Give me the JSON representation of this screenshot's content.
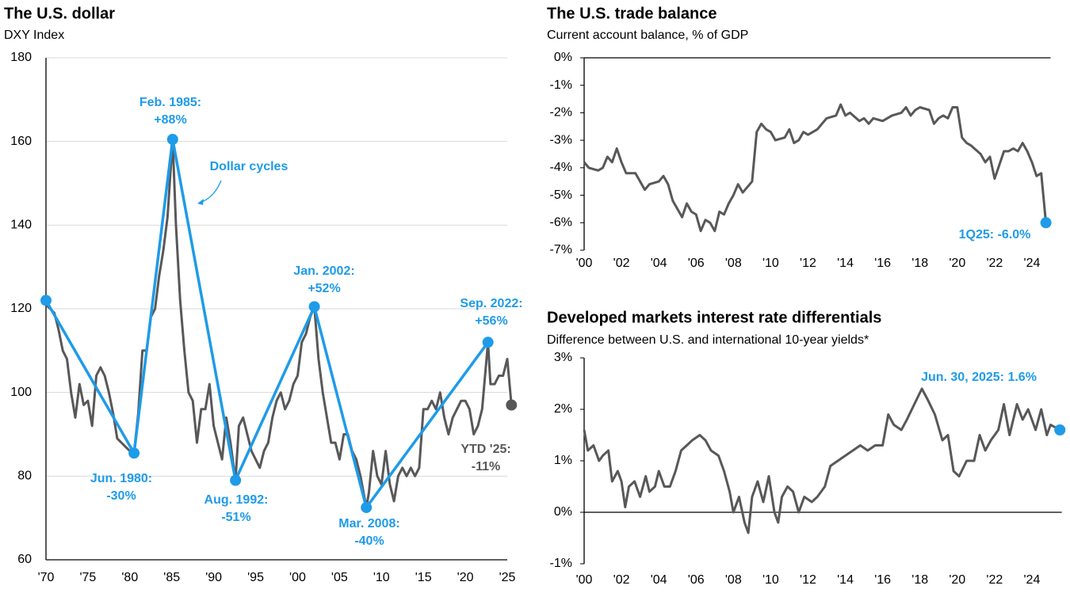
{
  "chart_data": [
    {
      "type": "line",
      "title": "The U.S. dollar",
      "subtitle": "DXY Index",
      "xlim": [
        1970,
        2025
      ],
      "ylim": [
        60,
        180
      ],
      "yticks": [
        60,
        80,
        100,
        120,
        140,
        160,
        180
      ],
      "grid": true,
      "xticks": [
        {
          "value": 1970,
          "label": "'70"
        },
        {
          "value": 1975,
          "label": "'75"
        },
        {
          "value": 1980,
          "label": "'80"
        },
        {
          "value": 1985,
          "label": "'85"
        },
        {
          "value": 1990,
          "label": "'90"
        },
        {
          "value": 1995,
          "label": "'95"
        },
        {
          "value": 2000,
          "label": "'00"
        },
        {
          "value": 2005,
          "label": "'05"
        },
        {
          "value": 2010,
          "label": "'10"
        },
        {
          "value": 2015,
          "label": "'15"
        },
        {
          "value": 2020,
          "label": "'20"
        },
        {
          "value": 2025,
          "label": "'25"
        }
      ],
      "series": [
        {
          "color": "#58585a",
          "marker": "last",
          "x": [
            1970,
            1971,
            1971.5,
            1972,
            1972.5,
            1973,
            1973.5,
            1974,
            1974.5,
            1975,
            1975.5,
            1976,
            1976.5,
            1977,
            1977.5,
            1978,
            1978.5,
            1979,
            1979.5,
            1980,
            1980.5,
            1981,
            1981.5,
            1982,
            1982.5,
            1983,
            1983.5,
            1984,
            1984.5,
            1985.1,
            1985.5,
            1986,
            1986.5,
            1987,
            1987.5,
            1988,
            1988.5,
            1989,
            1989.5,
            1990,
            1990.5,
            1991,
            1991.5,
            1992,
            1992.6,
            1993,
            1993.5,
            1994,
            1994.5,
            1995,
            1995.5,
            1996,
            1996.5,
            1997,
            1997.5,
            1998,
            1998.5,
            1999,
            1999.5,
            2000,
            2000.5,
            2001,
            2001.5,
            2002,
            2002.5,
            2003,
            2003.5,
            2004,
            2004.5,
            2005,
            2005.5,
            2006,
            2006.5,
            2007,
            2007.5,
            2008.2,
            2008.5,
            2009,
            2009.5,
            2010,
            2010.5,
            2011,
            2011.5,
            2012,
            2012.5,
            2013,
            2013.5,
            2014,
            2014.5,
            2015,
            2015.5,
            2016,
            2016.5,
            2017,
            2017.5,
            2018,
            2018.5,
            2019,
            2019.5,
            2020,
            2020.5,
            2021,
            2021.5,
            2022,
            2022.7,
            2023,
            2023.5,
            2024,
            2024.5,
            2025,
            2025.5
          ],
          "values": [
            121,
            119,
            115,
            110,
            108,
            100,
            94,
            102,
            97,
            98,
            92,
            104,
            106,
            104,
            100,
            95,
            89,
            88,
            87,
            86,
            85.5,
            95,
            110,
            110,
            118,
            120,
            128,
            134,
            142,
            160.5,
            140,
            122,
            110,
            100,
            98,
            88,
            96,
            96,
            102,
            92,
            88,
            84,
            94,
            88,
            79,
            92,
            94,
            90,
            86,
            84,
            82,
            86,
            88,
            94,
            98,
            100,
            96,
            98,
            102,
            104,
            112,
            114,
            118,
            120.5,
            108,
            100,
            94,
            88,
            88,
            84,
            90,
            90,
            86,
            84,
            80,
            72.5,
            76,
            86,
            80,
            78,
            86,
            78,
            74,
            80,
            82,
            80,
            82,
            80,
            82,
            96,
            96,
            98,
            96,
            100,
            94,
            90,
            94,
            96,
            98,
            98,
            96,
            90,
            92,
            96,
            112,
            102,
            102,
            104,
            104,
            108,
            97
          ]
        },
        {
          "name": "Dollar cycles",
          "color": "#1e9be9",
          "marker": "all",
          "x": [
            1970,
            1980.5,
            1985.1,
            1992.6,
            2002,
            2008.2,
            2022.7
          ],
          "values": [
            122,
            85.5,
            160.5,
            79,
            120.5,
            72.5,
            112
          ]
        }
      ],
      "annotations": [
        [
          "Jun. 1980:",
          "-30%"
        ],
        [
          "Feb. 1985:",
          "+88%"
        ],
        [
          "Aug. 1992:",
          "-51%"
        ],
        [
          "Jan. 2002:",
          "+52%"
        ],
        [
          "Mar. 2008:",
          "-40%"
        ],
        [
          "Sep. 2022:",
          "+56%"
        ],
        [
          "YTD '25:",
          "-11%"
        ]
      ]
    },
    {
      "type": "line",
      "title": "The U.S. trade balance",
      "subtitle": "Current account balance, % of GDP",
      "xlim": [
        2000,
        2025
      ],
      "ylim": [
        -7,
        0
      ],
      "grid": false,
      "yticks": [
        {
          "value": 0,
          "label": "0%"
        },
        {
          "value": -1,
          "label": "-1%"
        },
        {
          "value": -2,
          "label": "-2%"
        },
        {
          "value": -3,
          "label": "-3%"
        },
        {
          "value": -4,
          "label": "-4%"
        },
        {
          "value": -5,
          "label": "-5%"
        },
        {
          "value": -6,
          "label": "-6%"
        },
        {
          "value": -7,
          "label": "-7%"
        }
      ],
      "xticks": [
        {
          "value": 2000,
          "label": "'00"
        },
        {
          "value": 2002,
          "label": "'02"
        },
        {
          "value": 2004,
          "label": "'04"
        },
        {
          "value": 2006,
          "label": "'06"
        },
        {
          "value": 2008,
          "label": "'08"
        },
        {
          "value": 2010,
          "label": "'10"
        },
        {
          "value": 2012,
          "label": "'12"
        },
        {
          "value": 2014,
          "label": "'14"
        },
        {
          "value": 2016,
          "label": "'16"
        },
        {
          "value": 2018,
          "label": "'18"
        },
        {
          "value": 2020,
          "label": "'20"
        },
        {
          "value": 2022,
          "label": "'22"
        },
        {
          "value": 2024,
          "label": "'24"
        }
      ],
      "series": [
        {
          "color": "#58585a",
          "marker": "last",
          "x": [
            2000,
            2000.25,
            2000.75,
            2001,
            2001.25,
            2001.5,
            2001.75,
            2002,
            2002.25,
            2002.75,
            2003.25,
            2003.5,
            2004,
            2004.25,
            2004.5,
            2004.75,
            2005,
            2005.25,
            2005.5,
            2005.75,
            2006,
            2006.25,
            2006.5,
            2006.75,
            2007,
            2007.25,
            2007.5,
            2007.75,
            2008,
            2008.25,
            2008.5,
            2008.75,
            2009,
            2009.25,
            2009.5,
            2009.75,
            2010,
            2010.25,
            2010.75,
            2011,
            2011.25,
            2011.5,
            2011.75,
            2012,
            2012.5,
            2012.75,
            2013,
            2013.5,
            2013.75,
            2014,
            2014.25,
            2014.75,
            2015,
            2015.25,
            2015.5,
            2016,
            2016.5,
            2017,
            2017.25,
            2017.5,
            2017.75,
            2018,
            2018.5,
            2018.75,
            2019,
            2019.25,
            2019.5,
            2019.75,
            2020,
            2020.25,
            2020.5,
            2020.75,
            2021.25,
            2021.5,
            2021.75,
            2022,
            2022.25,
            2022.5,
            2022.75,
            2023,
            2023.25,
            2023.5,
            2023.75,
            2024,
            2024.25,
            2024.5,
            2024.75
          ],
          "values": [
            -3.8,
            -4.0,
            -4.1,
            -4.0,
            -3.6,
            -3.8,
            -3.3,
            -3.8,
            -4.2,
            -4.2,
            -4.8,
            -4.6,
            -4.5,
            -4.3,
            -4.6,
            -5.2,
            -5.5,
            -5.8,
            -5.3,
            -5.6,
            -5.7,
            -6.3,
            -5.9,
            -6.0,
            -6.3,
            -5.6,
            -5.7,
            -5.3,
            -5.0,
            -4.6,
            -4.9,
            -4.7,
            -4.5,
            -2.7,
            -2.4,
            -2.6,
            -2.7,
            -3.0,
            -2.9,
            -2.6,
            -3.1,
            -3.0,
            -2.7,
            -2.8,
            -2.6,
            -2.4,
            -2.2,
            -2.1,
            -1.7,
            -2.1,
            -2.0,
            -2.3,
            -2.2,
            -2.4,
            -2.2,
            -2.3,
            -2.1,
            -2.0,
            -1.8,
            -2.1,
            -1.9,
            -1.8,
            -1.9,
            -2.4,
            -2.2,
            -2.1,
            -2.2,
            -1.8,
            -1.8,
            -2.9,
            -3.1,
            -3.2,
            -3.5,
            -3.8,
            -3.6,
            -4.4,
            -3.9,
            -3.4,
            -3.4,
            -3.3,
            -3.4,
            -3.1,
            -3.4,
            -3.8,
            -4.3,
            -4.2,
            -6.0
          ]
        }
      ],
      "annotations": [
        "1Q25: -6.0%"
      ]
    },
    {
      "type": "line",
      "title": "Developed markets interest rate differentials",
      "subtitle": "Difference between U.S. and international 10-year yields*",
      "xlim": [
        2000,
        2025.6
      ],
      "ylim": [
        -1,
        3
      ],
      "grid": false,
      "yticks": [
        {
          "value": 3,
          "label": "3%"
        },
        {
          "value": 2,
          "label": "2%"
        },
        {
          "value": 1,
          "label": "1%"
        },
        {
          "value": 0,
          "label": "0%"
        },
        {
          "value": -1,
          "label": "-1%"
        }
      ],
      "xticks": [
        {
          "value": 2000,
          "label": "'00"
        },
        {
          "value": 2002,
          "label": "'02"
        },
        {
          "value": 2004,
          "label": "'04"
        },
        {
          "value": 2006,
          "label": "'06"
        },
        {
          "value": 2008,
          "label": "'08"
        },
        {
          "value": 2010,
          "label": "'10"
        },
        {
          "value": 2012,
          "label": "'12"
        },
        {
          "value": 2014,
          "label": "'14"
        },
        {
          "value": 2016,
          "label": "'16"
        },
        {
          "value": 2018,
          "label": "'18"
        },
        {
          "value": 2020,
          "label": "'20"
        },
        {
          "value": 2022,
          "label": "'22"
        },
        {
          "value": 2024,
          "label": "'24"
        }
      ],
      "series": [
        {
          "color": "#58585a",
          "marker": "last",
          "x": [
            2000,
            2000.2,
            2000.5,
            2000.8,
            2001,
            2001.3,
            2001.5,
            2001.8,
            2002,
            2002.2,
            2002.4,
            2002.7,
            2003,
            2003.3,
            2003.5,
            2003.8,
            2004,
            2004.3,
            2004.6,
            2004.9,
            2005.2,
            2005.5,
            2005.8,
            2006.2,
            2006.5,
            2006.8,
            2007.2,
            2007.5,
            2007.8,
            2008,
            2008.3,
            2008.6,
            2008.8,
            2009,
            2009.3,
            2009.6,
            2009.9,
            2010.2,
            2010.4,
            2010.6,
            2010.9,
            2011.2,
            2011.5,
            2011.8,
            2012.2,
            2012.5,
            2012.9,
            2013.2,
            2013.6,
            2014,
            2014.4,
            2014.8,
            2015.2,
            2015.6,
            2016,
            2016.3,
            2016.6,
            2017,
            2017.3,
            2017.7,
            2018.1,
            2018.4,
            2018.8,
            2019.2,
            2019.5,
            2019.8,
            2020.1,
            2020.5,
            2020.9,
            2021.2,
            2021.5,
            2021.8,
            2022.2,
            2022.5,
            2022.8,
            2023.2,
            2023.5,
            2023.8,
            2024.2,
            2024.5,
            2024.8,
            2025,
            2025.5
          ],
          "values": [
            1.6,
            1.2,
            1.3,
            1.0,
            1.1,
            1.2,
            0.6,
            0.8,
            0.6,
            0.1,
            0.5,
            0.6,
            0.3,
            0.7,
            0.4,
            0.5,
            0.8,
            0.5,
            0.5,
            0.8,
            1.2,
            1.3,
            1.4,
            1.5,
            1.4,
            1.2,
            1.1,
            0.8,
            0.4,
            0.0,
            0.3,
            -0.2,
            -0.4,
            0.3,
            0.6,
            0.2,
            0.7,
            0.0,
            -0.2,
            0.3,
            0.5,
            0.4,
            0.0,
            0.3,
            0.2,
            0.3,
            0.5,
            0.9,
            1.0,
            1.1,
            1.2,
            1.3,
            1.2,
            1.3,
            1.3,
            1.9,
            1.7,
            1.6,
            1.8,
            2.1,
            2.4,
            2.2,
            1.9,
            1.4,
            1.5,
            0.8,
            0.7,
            1.0,
            1.0,
            1.5,
            1.2,
            1.4,
            1.6,
            2.1,
            1.5,
            2.1,
            1.8,
            2.0,
            1.6,
            2.0,
            1.5,
            1.7,
            1.6
          ]
        }
      ],
      "annotations": [
        "Jun. 30, 2025: 1.6%"
      ]
    }
  ]
}
